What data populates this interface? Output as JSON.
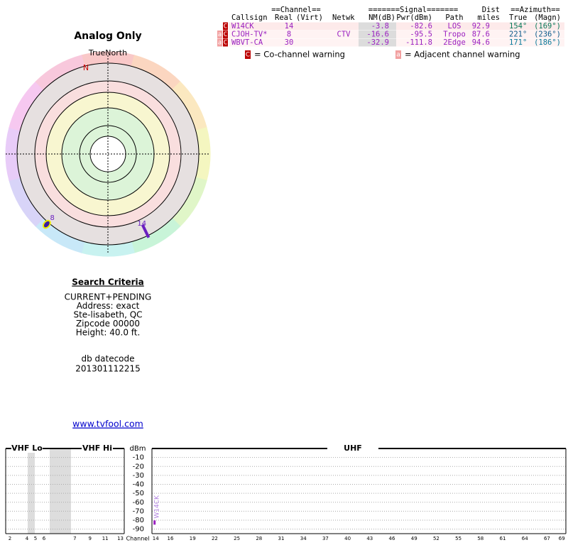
{
  "title": "Analog Only",
  "radar": {
    "north_label": "TrueNorth",
    "n": "N"
  },
  "search": {
    "heading": "Search Criteria",
    "lines": [
      "CURRENT+PENDING",
      "Address: exact",
      "Ste-lisabeth, QC",
      "Zipcode 00000",
      "Height: 40.0 ft."
    ],
    "db_label": "db datecode",
    "db_code": "201301112215"
  },
  "link": "www.tvfool.com",
  "table": {
    "group_headers": {
      "channel": "==Channel==",
      "signal": "=======Signal=======",
      "dist": "Dist",
      "azimuth": "==Azimuth=="
    },
    "headers": [
      "Callsign",
      "Real",
      "(Virt)",
      "Netwk",
      "NM(dB)",
      "Pwr(dBm)",
      "Path",
      "miles",
      "True",
      "(Magn)"
    ],
    "rows": [
      {
        "warnings": [
          "C"
        ],
        "callsign": "W14CK",
        "real": "14",
        "nm": "-3.8",
        "pwr": "-82.6",
        "path": "LOS",
        "dist": "92.9",
        "true": "154°",
        "magn": "(169°)"
      },
      {
        "warnings": [
          "a",
          "C"
        ],
        "callsign": "CJOH-TV*",
        "real": "8",
        "netwk": "CTV",
        "nm": "-16.6",
        "pwr": "-95.5",
        "path": "Tropo",
        "dist": "87.6",
        "true": "221°",
        "magn": "(236°)"
      },
      {
        "warnings": [
          "a",
          "C"
        ],
        "callsign": "WBVT-CA",
        "real": "30",
        "nm": "-32.9",
        "pwr": "-111.8",
        "path": "2Edge",
        "dist": "94.6",
        "true": "171°",
        "magn": "(186°)"
      }
    ]
  },
  "legend": [
    {
      "box": "C",
      "text": "= Co-channel warning"
    },
    {
      "box": "a",
      "text": "= Adjacent channel warning"
    }
  ],
  "spectrum": {
    "sections": [
      "VHF Lo",
      "VHF Hi",
      "UHF"
    ],
    "ylabel": "dBm",
    "ylim": [
      -95,
      0
    ],
    "yticks": [
      -10,
      -20,
      -30,
      -40,
      -50,
      -60,
      -70,
      -80,
      -90
    ],
    "xlabel": "Channel",
    "vhf_ticks": [
      2,
      4,
      5,
      6,
      7,
      9,
      11,
      13
    ],
    "uhf_ticks": [
      14,
      16,
      19,
      22,
      25,
      28,
      31,
      34,
      37,
      40,
      43,
      46,
      49,
      52,
      55,
      58,
      61,
      64,
      67,
      69
    ],
    "bars": [
      {
        "label": "W14CK",
        "channel": 14,
        "value": -82.6
      }
    ]
  }
}
